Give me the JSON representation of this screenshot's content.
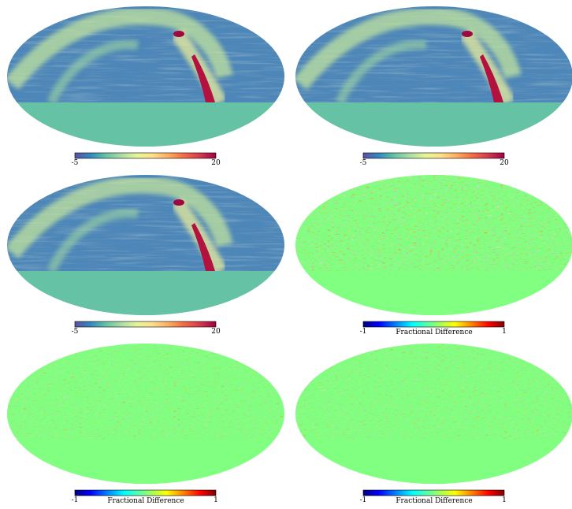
{
  "panels": [
    {
      "colorbar": {
        "min": -5,
        "max": 20
      }
    },
    {
      "colorbar": {
        "min": -5,
        "max": 20
      }
    },
    {
      "colorbar": {
        "min": -5,
        "max": 20
      }
    },
    {
      "colorbar": {
        "min": -1,
        "max": 1,
        "label": "Fractional Difference"
      }
    },
    {
      "colorbar": {
        "min": -1,
        "max": 1,
        "label": "Fractional Difference"
      }
    },
    {
      "colorbar": {
        "min": -1,
        "max": 1,
        "label": "Fractional Difference"
      }
    }
  ]
}
